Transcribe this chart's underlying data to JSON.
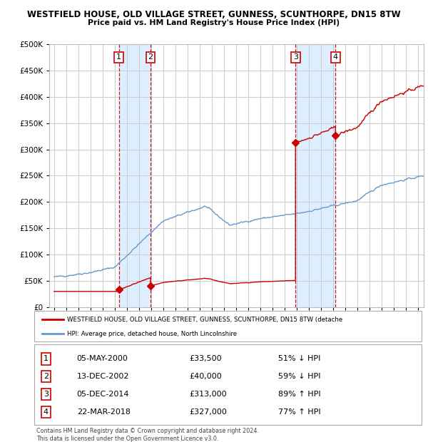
{
  "title": "WESTFIELD HOUSE, OLD VILLAGE STREET, GUNNESS, SCUNTHORPE, DN15 8TW",
  "subtitle": "Price paid vs. HM Land Registry's House Price Index (HPI)",
  "sales": [
    {
      "date": 2000.35,
      "price": 33500,
      "label": "1"
    },
    {
      "date": 2002.95,
      "price": 40000,
      "label": "2"
    },
    {
      "date": 2014.92,
      "price": 313000,
      "label": "3"
    },
    {
      "date": 2018.22,
      "price": 327000,
      "label": "4"
    }
  ],
  "sale_vlines": [
    2000.35,
    2002.95,
    2014.92,
    2018.22
  ],
  "legend_property": "WESTFIELD HOUSE, OLD VILLAGE STREET, GUNNESS, SCUNTHORPE, DN15 8TW (detache",
  "legend_hpi": "HPI: Average price, detached house, North Lincolnshire",
  "table_rows": [
    {
      "num": "1",
      "date": "05-MAY-2000",
      "price": "£33,500",
      "pct": "51% ↓ HPI"
    },
    {
      "num": "2",
      "date": "13-DEC-2002",
      "price": "£40,000",
      "pct": "59% ↓ HPI"
    },
    {
      "num": "3",
      "date": "05-DEC-2014",
      "price": "£313,000",
      "pct": "89% ↑ HPI"
    },
    {
      "num": "4",
      "date": "22-MAR-2018",
      "price": "£327,000",
      "pct": "77% ↑ HPI"
    }
  ],
  "footer": "Contains HM Land Registry data © Crown copyright and database right 2024.\nThis data is licensed under the Open Government Licence v3.0.",
  "ylim": [
    0,
    500000
  ],
  "yticks": [
    0,
    50000,
    100000,
    150000,
    200000,
    250000,
    300000,
    350000,
    400000,
    450000,
    500000
  ],
  "xlim_start": 1994.6,
  "xlim_end": 2025.5,
  "property_color": "#cc0000",
  "hpi_color": "#6699cc",
  "sale_shade_color": "#ddeeff",
  "vline_color": "#cc0000",
  "grid_color": "#cccccc",
  "bg_color": "#ffffff",
  "hpi_seed": 42,
  "prop_initial_y": 30000,
  "prop_initial_start": 1995.0
}
